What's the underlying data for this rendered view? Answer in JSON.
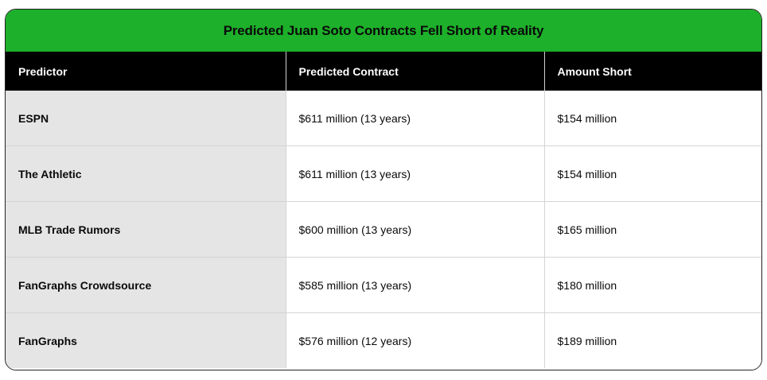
{
  "title": "Predicted Juan Soto Contracts Fell Short of Reality",
  "colors": {
    "title_bar": "#1db02a",
    "header_bg": "#000000",
    "first_column_bg": "#e5e5e5"
  },
  "headers": [
    "Predictor",
    "Predicted Contract",
    "Amount Short"
  ],
  "rows": [
    [
      "ESPN",
      "$611 million (13 years)",
      "$154 million"
    ],
    [
      "The Athletic",
      "$611 million (13 years)",
      "$154 million"
    ],
    [
      "MLB Trade Rumors",
      "$600 million (13 years)",
      "$165 million"
    ],
    [
      "FanGraphs Crowdsource",
      "$585 million (13 years)",
      "$180 million"
    ],
    [
      "FanGraphs",
      "$576 million (12 years)",
      "$189 million"
    ]
  ]
}
